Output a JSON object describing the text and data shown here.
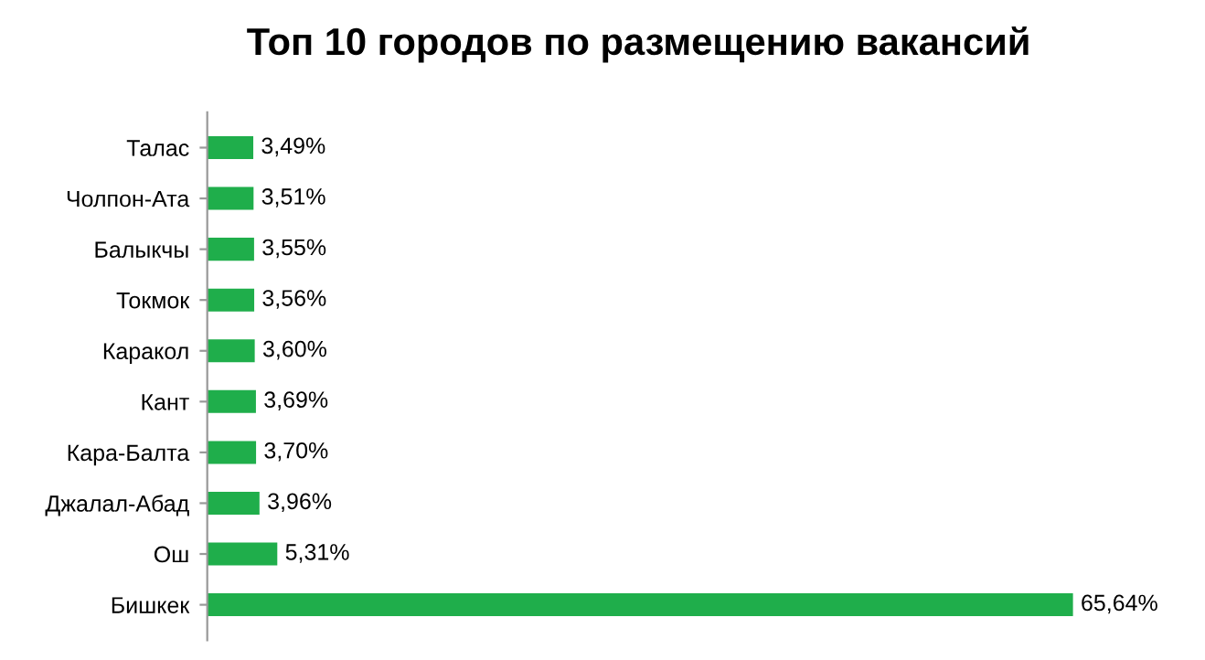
{
  "chart_data": {
    "type": "bar",
    "orientation": "horizontal",
    "title": "Топ 10 городов по размещению вакансий",
    "categories": [
      "Талас",
      "Чолпон-Ата",
      "Балыкчы",
      "Токмок",
      "Каракол",
      "Кант",
      "Кара-Балта",
      "Джалал-Абад",
      "Ош",
      "Бишкек"
    ],
    "values": [
      3.49,
      3.51,
      3.55,
      3.56,
      3.6,
      3.69,
      3.7,
      3.96,
      5.31,
      65.64
    ],
    "value_labels": [
      "3,49%",
      "3,51%",
      "3,55%",
      "3,56%",
      "3,60%",
      "3,69%",
      "3,70%",
      "3,96%",
      "5,31%",
      "65,64%"
    ],
    "color": "#1fae4b",
    "grid": false,
    "legend": false
  }
}
